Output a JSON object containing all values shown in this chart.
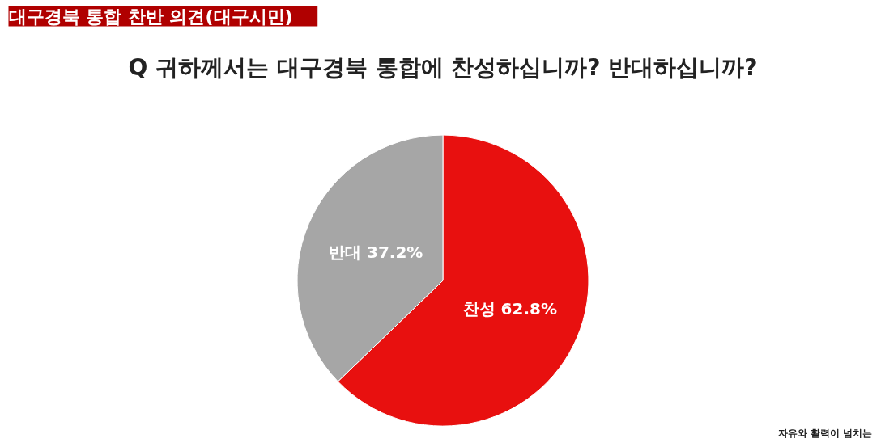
{
  "chart_data": {
    "type": "pie",
    "title": "대구경북 통합 찬반 의견(대구시민)",
    "subtitle": "Q 귀하께서는 대구경북 통합에 찬성하십니까? 반대하십니까?",
    "categories": [
      "찬성",
      "반대"
    ],
    "values": [
      62.8,
      37.2
    ],
    "colors": [
      "#e8100f",
      "#a6a6a6"
    ],
    "value_labels": [
      "62.8%",
      "37.2%"
    ],
    "annotations": [
      "자유와 활력이 넘치는"
    ]
  }
}
